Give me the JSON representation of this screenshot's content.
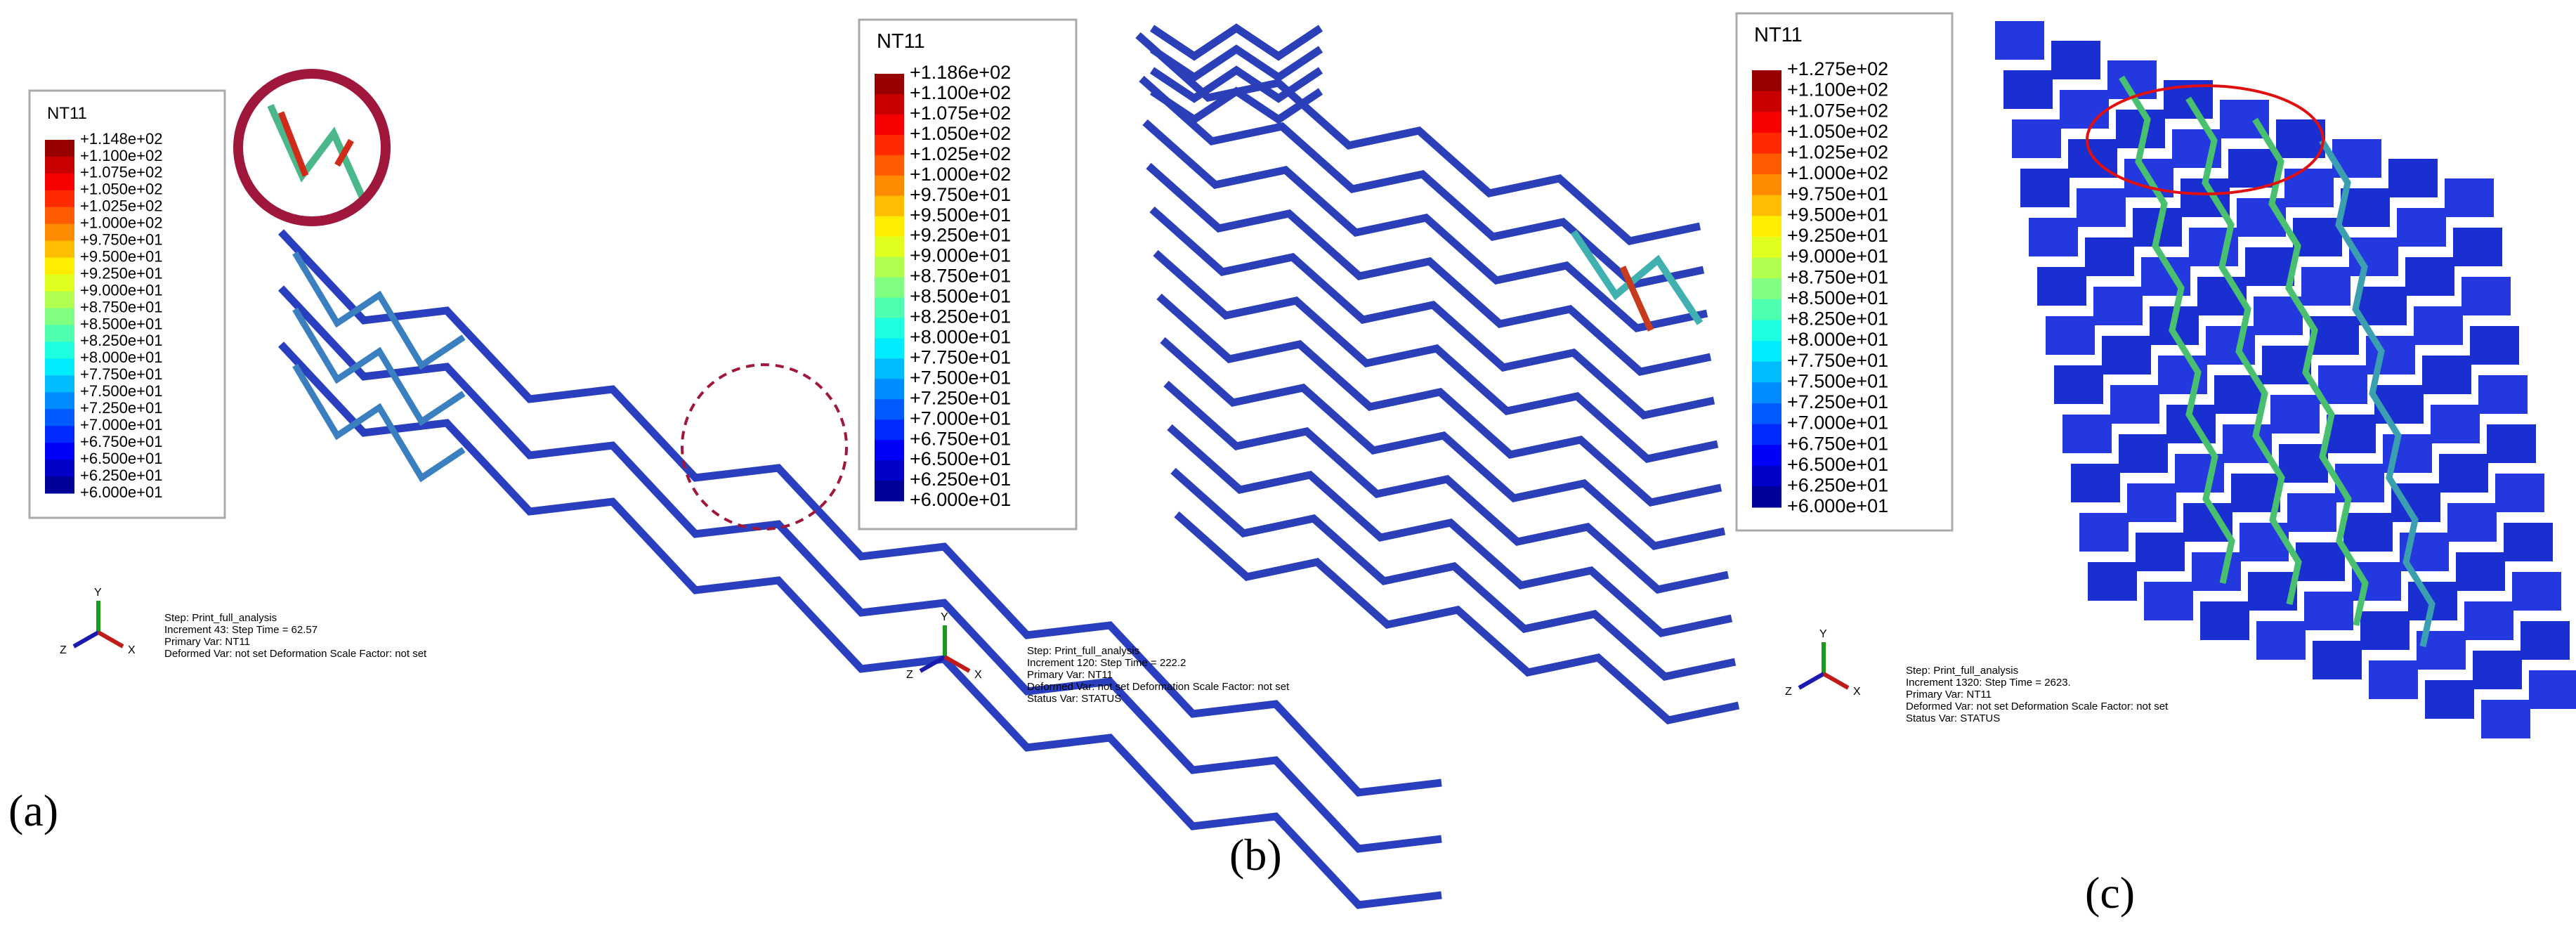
{
  "panels": [
    {
      "label": "(a)",
      "legend": {
        "title": "NT11",
        "labels": [
          "+1.148e+02",
          "+1.100e+02",
          "+1.075e+02",
          "+1.050e+02",
          "+1.025e+02",
          "+1.000e+02",
          "+9.750e+01",
          "+9.500e+01",
          "+9.250e+01",
          "+9.000e+01",
          "+8.750e+01",
          "+8.500e+01",
          "+8.250e+01",
          "+8.000e+01",
          "+7.750e+01",
          "+7.500e+01",
          "+7.250e+01",
          "+7.000e+01",
          "+6.750e+01",
          "+6.500e+01",
          "+6.250e+01",
          "+6.000e+01"
        ]
      },
      "info": [
        "Step: Print_full_analysis",
        "Increment    43: Step Time =    62.57",
        "Primary Var: NT11",
        "Deformed Var: not set   Deformation Scale Factor: not set"
      ],
      "triad": [
        "Y",
        "Z",
        "X"
      ]
    },
    {
      "label": "(b)",
      "legend": {
        "title": "NT11",
        "labels": [
          "+1.186e+02",
          "+1.100e+02",
          "+1.075e+02",
          "+1.050e+02",
          "+1.025e+02",
          "+1.000e+02",
          "+9.750e+01",
          "+9.500e+01",
          "+9.250e+01",
          "+9.000e+01",
          "+8.750e+01",
          "+8.500e+01",
          "+8.250e+01",
          "+8.000e+01",
          "+7.750e+01",
          "+7.500e+01",
          "+7.250e+01",
          "+7.000e+01",
          "+6.750e+01",
          "+6.500e+01",
          "+6.250e+01",
          "+6.000e+01"
        ]
      },
      "info": [
        "Step: Print_full_analysis",
        "Increment   120: Step Time =    222.2",
        "Primary Var: NT11",
        "Deformed Var: not set   Deformation Scale Factor: not set",
        "Status Var: STATUS"
      ],
      "triad": [
        "Y",
        "Z",
        "X"
      ]
    },
    {
      "label": "(c)",
      "legend": {
        "title": "NT11",
        "labels": [
          "+1.275e+02",
          "+1.100e+02",
          "+1.075e+02",
          "+1.050e+02",
          "+1.025e+02",
          "+1.000e+02",
          "+9.750e+01",
          "+9.500e+01",
          "+9.250e+01",
          "+9.000e+01",
          "+8.750e+01",
          "+8.500e+01",
          "+8.250e+01",
          "+8.000e+01",
          "+7.750e+01",
          "+7.500e+01",
          "+7.250e+01",
          "+7.000e+01",
          "+6.750e+01",
          "+6.500e+01",
          "+6.250e+01",
          "+6.000e+01"
        ]
      },
      "info": [
        "Step: Print_full_analysis",
        "Increment  1320: Step Time =    2623.",
        "Primary Var: NT11",
        "Deformed Var: not set   Deformation Scale Factor: not set",
        "Status Var: STATUS"
      ],
      "triad": [
        "Y",
        "Z",
        "X"
      ]
    }
  ]
}
